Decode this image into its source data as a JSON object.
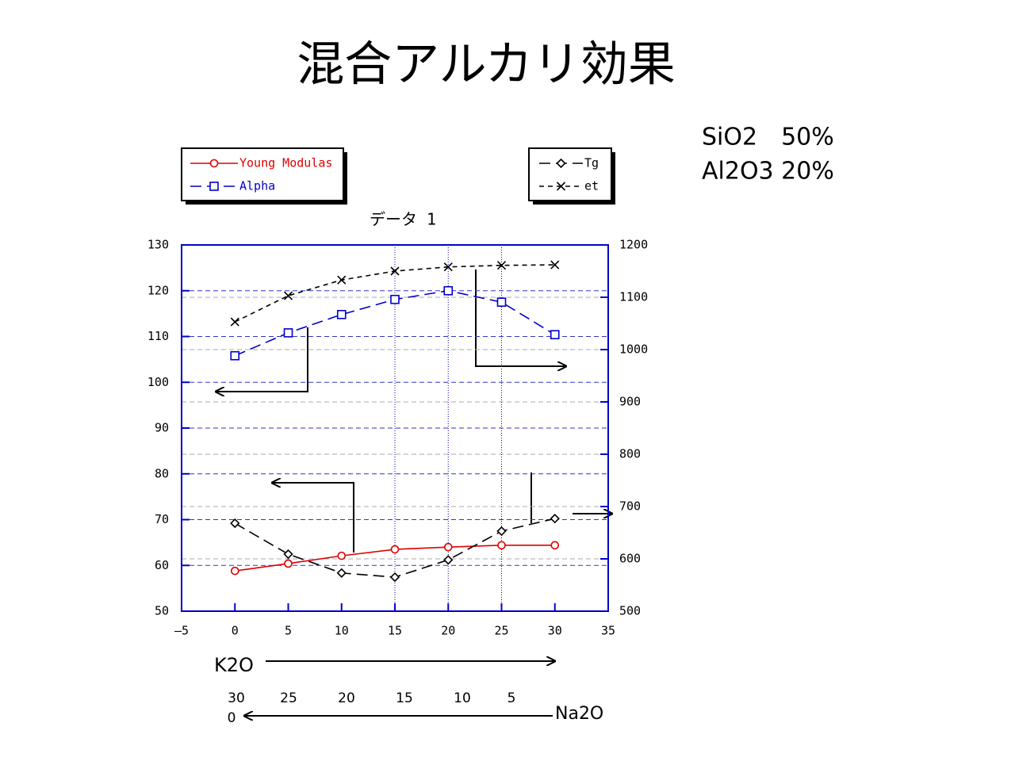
{
  "chart_data": {
    "type": "line",
    "title": "混合アルカリ効果",
    "subtitle": "データ 1",
    "composition": [
      "SiO2　50%",
      "Al2O3 20%"
    ],
    "xlabel": "K2O",
    "na2o_axis": {
      "label": "Na2O",
      "ticks": [
        30,
        25,
        20,
        15,
        10,
        5,
        0
      ]
    },
    "x": [
      0,
      5,
      10,
      15,
      20,
      25,
      30
    ],
    "xlim": [
      -5,
      35
    ],
    "xticks": [
      {
        "value": -5,
        "label": "–5"
      },
      0,
      5,
      10,
      15,
      20,
      25,
      30,
      35
    ],
    "x_grid_lines": [
      15,
      20,
      25
    ],
    "ylim": [
      50,
      130
    ],
    "yticks": [
      50,
      60,
      70,
      80,
      90,
      100,
      110,
      120,
      130
    ],
    "y2lim": [
      500,
      1200
    ],
    "y2ticks": [
      500,
      600,
      700,
      800,
      900,
      1000,
      1100,
      1200
    ],
    "grid": true,
    "series": [
      {
        "name": "Young Modulas",
        "color": "#dd0000",
        "marker": "circle",
        "line_style": "solid",
        "values": [
          58.8,
          60.4,
          62.1,
          63.5,
          64.0,
          64.4,
          64.4
        ]
      },
      {
        "name": "Alpha",
        "color": "#0000cc",
        "marker": "square",
        "line_style": "long-dash",
        "values": [
          105.8,
          110.8,
          114.8,
          118.1,
          120.0,
          117.5,
          110.4
        ]
      },
      {
        "name": "Tg",
        "color": "#000000",
        "marker": "diamond",
        "line_style": "long-dash",
        "axis": "y2",
        "values": [
          668,
          609,
          573,
          565,
          598,
          653,
          677
        ]
      },
      {
        "name": "et",
        "color": "#000000",
        "marker": "cross",
        "line_style": "short-dash",
        "axis": "y2",
        "values": [
          1053,
          1103,
          1133,
          1150,
          1158,
          1161,
          1162
        ]
      }
    ]
  }
}
